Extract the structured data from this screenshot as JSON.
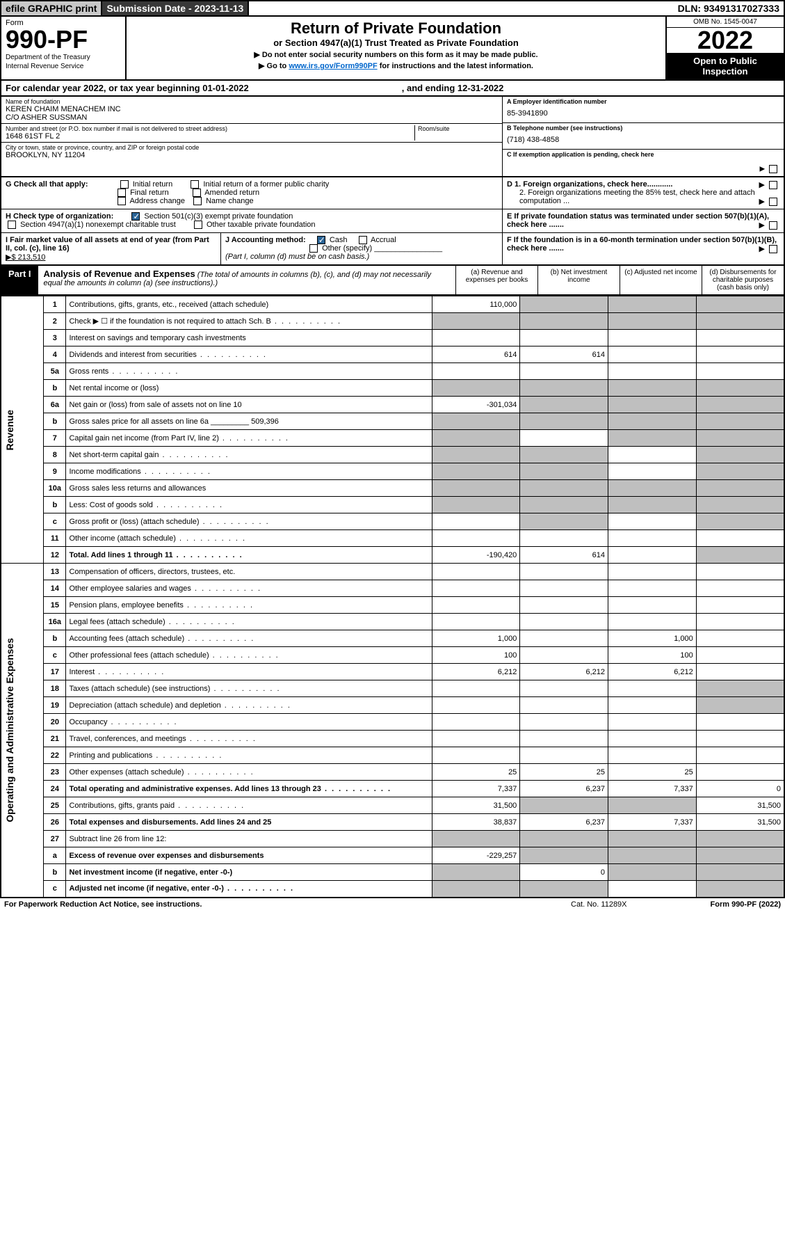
{
  "topbar": {
    "efile": "efile GRAPHIC print",
    "submission": "Submission Date - 2023-11-13",
    "dln": "DLN: 93491317027333"
  },
  "header": {
    "form_label": "Form",
    "form_no": "990-PF",
    "dept": "Department of the Treasury",
    "irs": "Internal Revenue Service",
    "title": "Return of Private Foundation",
    "subtitle": "or Section 4947(a)(1) Trust Treated as Private Foundation",
    "instr1": "▶ Do not enter social security numbers on this form as it may be made public.",
    "instr2_pre": "▶ Go to ",
    "instr2_link": "www.irs.gov/Form990PF",
    "instr2_post": " for instructions and the latest information.",
    "omb": "OMB No. 1545-0047",
    "year": "2022",
    "open": "Open to Public Inspection"
  },
  "calyear": {
    "a": "For calendar year 2022, or tax year beginning 01-01-2022",
    "b": ", and ending 12-31-2022"
  },
  "id": {
    "name_label": "Name of foundation",
    "name1": "KEREN CHAIM MENACHEM INC",
    "name2": "C/O ASHER SUSSMAN",
    "addr_label": "Number and street (or P.O. box number if mail is not delivered to street address)",
    "room_label": "Room/suite",
    "addr": "1648 61ST FL 2",
    "city_label": "City or town, state or province, country, and ZIP or foreign postal code",
    "city": "BROOKLYN, NY  11204",
    "ein_label": "A Employer identification number",
    "ein": "85-3941890",
    "tel_label": "B Telephone number (see instructions)",
    "tel": "(718) 438-4858",
    "c": "C If exemption application is pending, check here",
    "d1": "D 1. Foreign organizations, check here............",
    "d2": "2. Foreign organizations meeting the 85% test, check here and attach computation ...",
    "e": "E  If private foundation status was terminated under section 507(b)(1)(A), check here .......",
    "f": "F  If the foundation is in a 60-month termination under section 507(b)(1)(B), check here .......",
    "g_label": "G Check all that apply:",
    "g_opts": [
      "Initial return",
      "Initial return of a former public charity",
      "Final return",
      "Amended return",
      "Address change",
      "Name change"
    ],
    "h_label": "H Check type of organization:",
    "h_opts": [
      "Section 501(c)(3) exempt private foundation",
      "Section 4947(a)(1) nonexempt charitable trust",
      "Other taxable private foundation"
    ],
    "i_label": "I Fair market value of all assets at end of year (from Part II, col. (c), line 16)",
    "i_val": "▶$  213,510",
    "j_label": "J Accounting method:",
    "j_cash": "Cash",
    "j_accrual": "Accrual",
    "j_other": "Other (specify)",
    "j_note": "(Part I, column (d) must be on cash basis.)"
  },
  "part1": {
    "label": "Part I",
    "title": "Analysis of Revenue and Expenses",
    "note": "(The total of amounts in columns (b), (c), and (d) may not necessarily equal the amounts in column (a) (see instructions).)",
    "cols": [
      "(a)   Revenue and expenses per books",
      "(b)   Net investment income",
      "(c)   Adjusted net income",
      "(d)   Disbursements for charitable purposes (cash basis only)"
    ]
  },
  "sections": {
    "revenue": "Revenue",
    "expenses": "Operating and Administrative Expenses"
  },
  "rows": [
    {
      "n": "1",
      "d": "Contributions, gifts, grants, etc., received (attach schedule)",
      "a": "110,000",
      "bg": [
        0,
        1,
        1,
        1
      ]
    },
    {
      "n": "2",
      "d": "Check ▶ ☐ if the foundation is not required to attach Sch. B",
      "bg": [
        1,
        1,
        1,
        1
      ],
      "dots": 1,
      "nob": 1
    },
    {
      "n": "3",
      "d": "Interest on savings and temporary cash investments"
    },
    {
      "n": "4",
      "d": "Dividends and interest from securities",
      "a": "614",
      "b": "614",
      "dots": 1
    },
    {
      "n": "5a",
      "d": "Gross rents",
      "dots": 1
    },
    {
      "n": "b",
      "d": "Net rental income or (loss)",
      "bg": [
        1,
        1,
        1,
        1
      ]
    },
    {
      "n": "6a",
      "d": "Net gain or (loss) from sale of assets not on line 10",
      "a": "-301,034",
      "bg": [
        0,
        1,
        1,
        1
      ]
    },
    {
      "n": "b",
      "d": "Gross sales price for all assets on line 6a _________ 509,396",
      "bg": [
        1,
        1,
        1,
        1
      ]
    },
    {
      "n": "7",
      "d": "Capital gain net income (from Part IV, line 2)",
      "bg": [
        1,
        0,
        1,
        1
      ],
      "dots": 1
    },
    {
      "n": "8",
      "d": "Net short-term capital gain",
      "bg": [
        1,
        1,
        0,
        1
      ],
      "dots": 1
    },
    {
      "n": "9",
      "d": "Income modifications",
      "bg": [
        1,
        1,
        0,
        1
      ],
      "dots": 1
    },
    {
      "n": "10a",
      "d": "Gross sales less returns and allowances",
      "bg": [
        1,
        1,
        1,
        1
      ]
    },
    {
      "n": "b",
      "d": "Less: Cost of goods sold",
      "bg": [
        1,
        1,
        1,
        1
      ],
      "dots": 1
    },
    {
      "n": "c",
      "d": "Gross profit or (loss) (attach schedule)",
      "bg": [
        0,
        1,
        0,
        1
      ],
      "dots": 1
    },
    {
      "n": "11",
      "d": "Other income (attach schedule)",
      "dots": 1
    },
    {
      "n": "12",
      "d": "Total. Add lines 1 through 11",
      "a": "-190,420",
      "b": "614",
      "bg": [
        0,
        0,
        0,
        1
      ],
      "bold": 1,
      "dots": 1
    }
  ],
  "erows": [
    {
      "n": "13",
      "d": "Compensation of officers, directors, trustees, etc."
    },
    {
      "n": "14",
      "d": "Other employee salaries and wages",
      "dots": 1
    },
    {
      "n": "15",
      "d": "Pension plans, employee benefits",
      "dots": 1
    },
    {
      "n": "16a",
      "d": "Legal fees (attach schedule)",
      "dots": 1
    },
    {
      "n": "b",
      "d": "Accounting fees (attach schedule)",
      "a": "1,000",
      "c": "1,000",
      "dots": 1
    },
    {
      "n": "c",
      "d": "Other professional fees (attach schedule)",
      "a": "100",
      "c": "100",
      "dots": 1
    },
    {
      "n": "17",
      "d": "Interest",
      "a": "6,212",
      "b": "6,212",
      "c": "6,212",
      "dots": 1
    },
    {
      "n": "18",
      "d": "Taxes (attach schedule) (see instructions)",
      "bg": [
        0,
        0,
        0,
        1
      ],
      "dots": 1
    },
    {
      "n": "19",
      "d": "Depreciation (attach schedule) and depletion",
      "bg": [
        0,
        0,
        0,
        1
      ],
      "dots": 1
    },
    {
      "n": "20",
      "d": "Occupancy",
      "dots": 1
    },
    {
      "n": "21",
      "d": "Travel, conferences, and meetings",
      "dots": 1
    },
    {
      "n": "22",
      "d": "Printing and publications",
      "dots": 1
    },
    {
      "n": "23",
      "d": "Other expenses (attach schedule)",
      "a": "25",
      "b": "25",
      "c": "25",
      "dots": 1
    },
    {
      "n": "24",
      "d": "Total operating and administrative expenses. Add lines 13 through 23",
      "a": "7,337",
      "b": "6,237",
      "c": "7,337",
      "dd": "0",
      "bold": 1,
      "dots": 1
    },
    {
      "n": "25",
      "d": "Contributions, gifts, grants paid",
      "a": "31,500",
      "dd": "31,500",
      "bg": [
        0,
        1,
        1,
        0
      ],
      "dots": 1
    },
    {
      "n": "26",
      "d": "Total expenses and disbursements. Add lines 24 and 25",
      "a": "38,837",
      "b": "6,237",
      "c": "7,337",
      "dd": "31,500",
      "bold": 1
    },
    {
      "n": "27",
      "d": "Subtract line 26 from line 12:",
      "bg": [
        1,
        1,
        1,
        1
      ]
    },
    {
      "n": "a",
      "d": "Excess of revenue over expenses and disbursements",
      "a": "-229,257",
      "bg": [
        0,
        1,
        1,
        1
      ],
      "bold": 1
    },
    {
      "n": "b",
      "d": "Net investment income (if negative, enter -0-)",
      "b": "0",
      "bg": [
        1,
        0,
        1,
        1
      ],
      "bold": 1
    },
    {
      "n": "c",
      "d": "Adjusted net income (if negative, enter -0-)",
      "bg": [
        1,
        1,
        0,
        1
      ],
      "bold": 1,
      "dots": 1
    }
  ],
  "footer": {
    "a": "For Paperwork Reduction Act Notice, see instructions.",
    "b": "Cat. No. 11289X",
    "c": "Form 990-PF (2022)"
  }
}
